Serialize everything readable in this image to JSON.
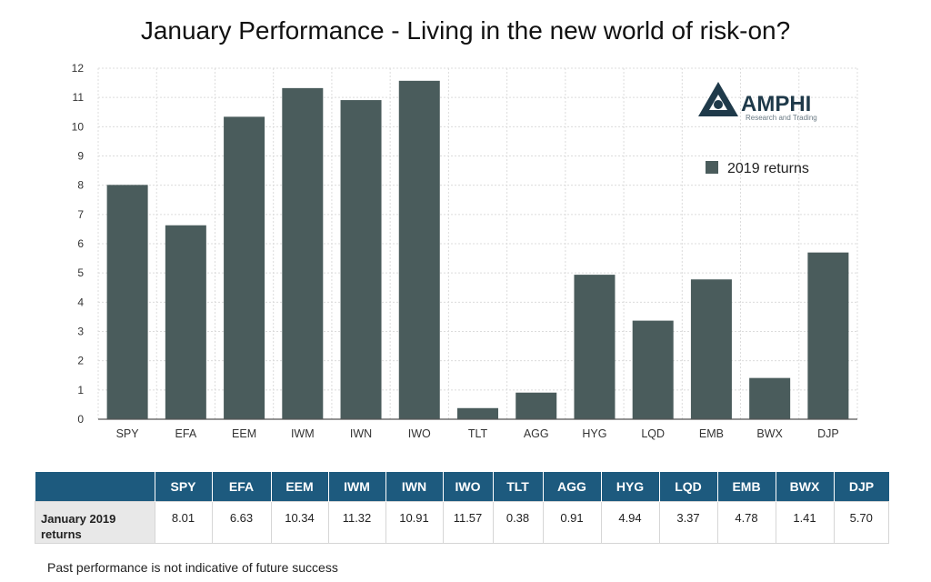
{
  "chart_data": {
    "type": "bar",
    "title": "January Performance - Living in the new world of risk-on?",
    "categories": [
      "SPY",
      "EFA",
      "EEM",
      "IWM",
      "IWN",
      "IWO",
      "TLT",
      "AGG",
      "HYG",
      "LQD",
      "EMB",
      "BWX",
      "DJP"
    ],
    "series": [
      {
        "name": "2019 returns",
        "values": [
          8.01,
          6.63,
          10.34,
          11.32,
          10.91,
          11.57,
          0.38,
          0.91,
          4.94,
          3.37,
          4.78,
          1.41,
          5.7
        ],
        "color": "#4a5c5c"
      }
    ],
    "ylim": [
      0,
      12
    ],
    "yticks": [
      0,
      1,
      2,
      3,
      4,
      5,
      6,
      7,
      8,
      9,
      10,
      11,
      12
    ],
    "xlabel": "",
    "ylabel": "",
    "grid": true,
    "legend": "top-right"
  },
  "logo": {
    "name": "AMPHI",
    "tagline": "Research and Trading",
    "icon": "amphi-triangle-logo"
  },
  "table": {
    "row_label": "January 2019 returns",
    "headers": [
      "SPY",
      "EFA",
      "EEM",
      "IWM",
      "IWN",
      "IWO",
      "TLT",
      "AGG",
      "HYG",
      "LQD",
      "EMB",
      "BWX",
      "DJP"
    ],
    "values": [
      "8.01",
      "6.63",
      "10.34",
      "11.32",
      "10.91",
      "11.57",
      "0.38",
      "0.91",
      "4.94",
      "3.37",
      "4.78",
      "1.41",
      "5.70"
    ],
    "header_color": "#1d5a7e"
  },
  "footnote": "Past performance is not indicative of future success"
}
